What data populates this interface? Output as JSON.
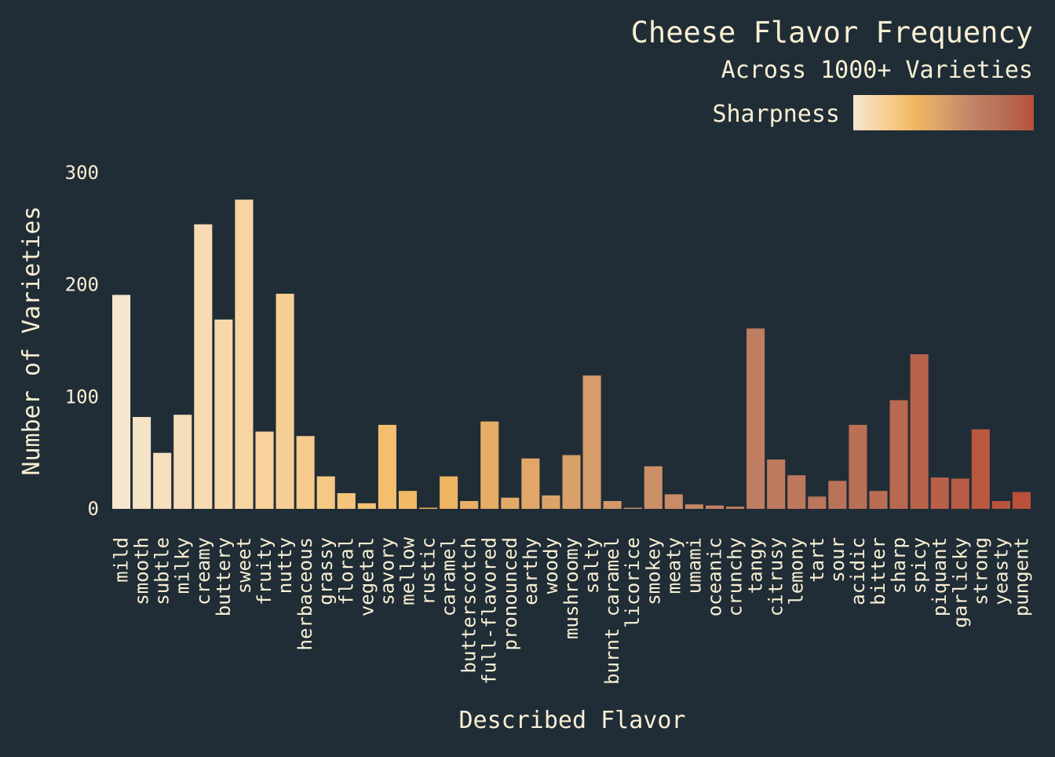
{
  "chart_data": {
    "type": "bar",
    "title": "Cheese Flavor Frequency",
    "subtitle": "Across 1000+ Varieties",
    "xlabel": "Described Flavor",
    "ylabel": "Number of Varieties",
    "ylim": [
      0,
      300
    ],
    "yticks": [
      0,
      100,
      200,
      300
    ],
    "legend": {
      "title": "Sharpness",
      "position": "top-right",
      "type": "color-gradient"
    },
    "grid": false,
    "colors": {
      "background": "#202d36",
      "text": "#f8efd4",
      "gradient": [
        "#f5e6cf",
        "#f8d199",
        "#f1b862",
        "#d9a06a",
        "#c18266",
        "#b86e55",
        "#b8503a"
      ]
    },
    "categories": [
      "mild",
      "smooth",
      "subtle",
      "milky",
      "creamy",
      "buttery",
      "sweet",
      "fruity",
      "nutty",
      "herbaceous",
      "grassy",
      "floral",
      "vegetal",
      "savory",
      "mellow",
      "rustic",
      "caramel",
      "butterscotch",
      "full-flavored",
      "pronounced",
      "earthy",
      "woody",
      "mushroomy",
      "salty",
      "burnt caramel",
      "licorice",
      "smokey",
      "meaty",
      "umami",
      "oceanic",
      "crunchy",
      "tangy",
      "citrusy",
      "lemony",
      "tart",
      "sour",
      "acidic",
      "bitter",
      "sharp",
      "spicy",
      "piquant",
      "garlicky",
      "strong",
      "yeasty",
      "pungent"
    ],
    "values": [
      191,
      82,
      50,
      84,
      254,
      169,
      276,
      69,
      192,
      65,
      29,
      14,
      5,
      75,
      16,
      1,
      29,
      7,
      78,
      10,
      45,
      12,
      48,
      119,
      7,
      1,
      38,
      13,
      4,
      3,
      2,
      161,
      44,
      30,
      11,
      25,
      75,
      16,
      97,
      138,
      28,
      27,
      71,
      7,
      15
    ]
  }
}
